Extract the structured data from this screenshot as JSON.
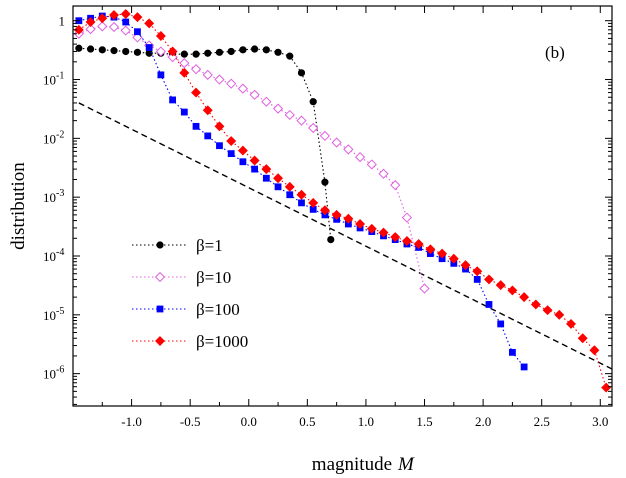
{
  "chart_data": {
    "type": "scatter",
    "panel_label": "(b)",
    "xlabel": "magnitude",
    "xlabel_symbol": "M",
    "ylabel": "distribution",
    "x_ticks": [
      -1.0,
      -0.5,
      0.0,
      0.5,
      1.0,
      1.5,
      2.0,
      2.5,
      3.0
    ],
    "x_tick_labels": [
      "-1.0",
      "-0.5",
      "0.0",
      "0.5",
      "1.0",
      "1.5",
      "2.0",
      "2.5",
      "3.0"
    ],
    "xlim": [
      -1.5,
      3.1
    ],
    "ylim_log10": [
      -6.55,
      0.25
    ],
    "y_scale": "log",
    "y_ticks": [
      {
        "value": 1,
        "base": "1",
        "exp": ""
      },
      {
        "value": 0.1,
        "base": "10",
        "exp": "-1"
      },
      {
        "value": 0.01,
        "base": "10",
        "exp": "-2"
      },
      {
        "value": 0.001,
        "base": "10",
        "exp": "-3"
      },
      {
        "value": 0.0001,
        "base": "10",
        "exp": "-4"
      },
      {
        "value": 1e-05,
        "base": "10",
        "exp": "-5"
      },
      {
        "value": 1e-06,
        "base": "10",
        "exp": "-6"
      }
    ],
    "legend_position": "bottom-left",
    "reference_line": {
      "x": [
        -1.45,
        3.1
      ],
      "y": [
        0.04,
        1.2e-06
      ],
      "style": "dashed",
      "color": "#000000"
    },
    "series": [
      {
        "name": "β=1",
        "color": "#000000",
        "marker": "circle",
        "filled": true,
        "x": [
          -1.45,
          -1.35,
          -1.25,
          -1.15,
          -1.05,
          -0.95,
          -0.85,
          -0.75,
          -0.65,
          -0.55,
          -0.45,
          -0.35,
          -0.25,
          -0.15,
          -0.05,
          0.05,
          0.15,
          0.25,
          0.35,
          0.45,
          0.55,
          0.65,
          0.7
        ],
        "y": [
          0.34,
          0.33,
          0.32,
          0.31,
          0.3,
          0.29,
          0.28,
          0.28,
          0.27,
          0.27,
          0.27,
          0.28,
          0.29,
          0.3,
          0.32,
          0.33,
          0.32,
          0.29,
          0.25,
          0.13,
          0.042,
          0.0018,
          0.00019
        ]
      },
      {
        "name": "β=10",
        "color": "#e060e0",
        "marker": "diamond",
        "filled": false,
        "x": [
          -1.45,
          -1.35,
          -1.25,
          -1.15,
          -1.05,
          -0.95,
          -0.85,
          -0.75,
          -0.65,
          -0.55,
          -0.45,
          -0.35,
          -0.25,
          -0.15,
          -0.05,
          0.05,
          0.15,
          0.25,
          0.35,
          0.45,
          0.55,
          0.65,
          0.75,
          0.85,
          0.95,
          1.05,
          1.15,
          1.25,
          1.35,
          1.5
        ],
        "y": [
          0.6,
          0.72,
          0.8,
          0.78,
          0.68,
          0.52,
          0.38,
          0.3,
          0.24,
          0.19,
          0.15,
          0.12,
          0.1,
          0.085,
          0.07,
          0.055,
          0.042,
          0.032,
          0.025,
          0.02,
          0.015,
          0.011,
          0.0085,
          0.0065,
          0.0048,
          0.0036,
          0.0025,
          0.0016,
          0.00045,
          2.8e-05
        ]
      },
      {
        "name": "β=100",
        "color": "#0000ff",
        "marker": "square",
        "filled": true,
        "x": [
          -1.45,
          -1.35,
          -1.25,
          -1.15,
          -1.05,
          -0.95,
          -0.85,
          -0.75,
          -0.65,
          -0.55,
          -0.45,
          -0.35,
          -0.25,
          -0.15,
          -0.05,
          0.05,
          0.15,
          0.25,
          0.35,
          0.45,
          0.55,
          0.65,
          0.75,
          0.85,
          0.95,
          1.05,
          1.15,
          1.25,
          1.35,
          1.45,
          1.55,
          1.65,
          1.75,
          1.85,
          1.95,
          2.05,
          2.15,
          2.25,
          2.35
        ],
        "y": [
          1.0,
          1.1,
          1.2,
          1.15,
          0.95,
          0.65,
          0.35,
          0.12,
          0.045,
          0.028,
          0.016,
          0.011,
          0.0075,
          0.0055,
          0.004,
          0.003,
          0.0021,
          0.0015,
          0.0011,
          0.0008,
          0.00062,
          0.0005,
          0.00042,
          0.00035,
          0.0003,
          0.00026,
          0.00022,
          0.00019,
          0.00016,
          0.00014,
          0.00011,
          9e-05,
          7.5e-05,
          6e-05,
          4e-05,
          1.5e-05,
          7e-06,
          2.3e-06,
          1.3e-06
        ]
      },
      {
        "name": "β=1000",
        "color": "#ff0000",
        "marker": "diamond",
        "filled": true,
        "x": [
          -1.45,
          -1.35,
          -1.25,
          -1.15,
          -1.05,
          -0.95,
          -0.85,
          -0.75,
          -0.65,
          -0.55,
          -0.45,
          -0.35,
          -0.25,
          -0.15,
          -0.05,
          0.05,
          0.15,
          0.25,
          0.35,
          0.45,
          0.55,
          0.65,
          0.75,
          0.85,
          0.95,
          1.05,
          1.15,
          1.25,
          1.35,
          1.45,
          1.55,
          1.65,
          1.75,
          1.85,
          1.95,
          2.05,
          2.15,
          2.25,
          2.35,
          2.45,
          2.55,
          2.65,
          2.75,
          2.85,
          2.95,
          3.05
        ],
        "y": [
          0.7,
          0.95,
          1.1,
          1.25,
          1.3,
          1.15,
          0.9,
          0.55,
          0.3,
          0.13,
          0.06,
          0.03,
          0.016,
          0.009,
          0.0062,
          0.0042,
          0.003,
          0.0021,
          0.0015,
          0.0011,
          0.0008,
          0.0006,
          0.0005,
          0.00043,
          0.00035,
          0.00029,
          0.00025,
          0.00021,
          0.00018,
          0.00016,
          0.00013,
          0.00011,
          9e-05,
          7e-05,
          5.5e-05,
          4e-05,
          3.2e-05,
          2.6e-05,
          2e-05,
          1.5e-05,
          1.2e-05,
          1e-05,
          7e-06,
          4e-06,
          2.5e-06,
          5.8e-07
        ]
      }
    ]
  }
}
